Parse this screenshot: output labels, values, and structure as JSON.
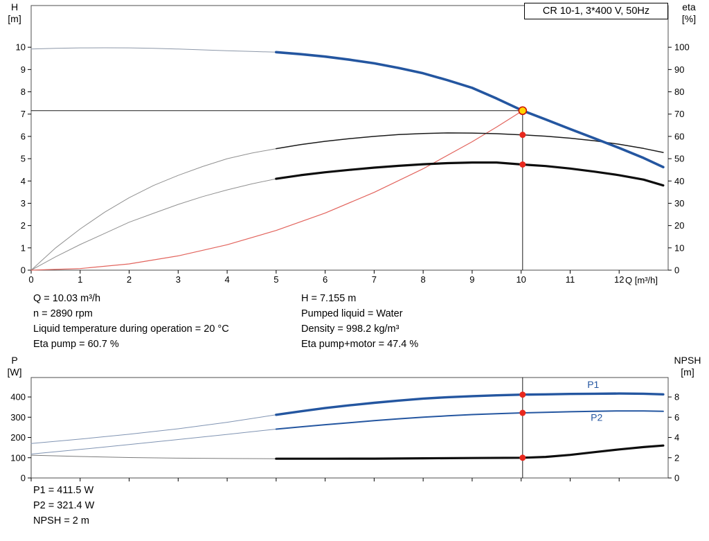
{
  "title_box": "CR 10-1, 3*400 V, 50Hz",
  "axis_labels": {
    "h": "H",
    "h_unit": "[m]",
    "eta": "eta",
    "eta_unit": "[%]",
    "q": "Q [m³/h]",
    "p": "P",
    "p_unit": "[W]",
    "npsh": "NPSH",
    "npsh_unit": "[m]"
  },
  "info_top": {
    "left": [
      "Q = 10.03 m³/h",
      "n = 2890 rpm",
      "Liquid temperature during operation = 20 °C",
      "Eta pump = 60.7 %"
    ],
    "right": [
      "H = 7.155 m",
      "Pumped liquid = Water",
      "Density = 998.2 kg/m³",
      "Eta pump+motor = 47.4 %"
    ]
  },
  "info_bottom": [
    "P1 = 411.5 W",
    "P2 = 321.4 W",
    "NPSH = 2 m"
  ],
  "colors": {
    "curve_blue": "#2456a0",
    "curve_black": "#0d0d0d",
    "system_red": "#e2635c",
    "marker_red": "#e8281e",
    "duty_yellow": "#ffd400",
    "ext_gray": "#909090",
    "ext_bluegray": "#7f93b2"
  },
  "chart_data": [
    {
      "id": "chart-hq",
      "type": "line",
      "title": "CR 10-1, 3*400 V, 50Hz",
      "x": {
        "label": "Q [m³/h]",
        "min": 0,
        "max": 13,
        "ticks": [
          0,
          1,
          2,
          3,
          4,
          5,
          6,
          7,
          8,
          9,
          10,
          11,
          12
        ]
      },
      "y_left": {
        "label": "H [m]",
        "min": 0,
        "max": 11.87,
        "ticks": [
          0,
          1,
          2,
          3,
          4,
          5,
          6,
          7,
          8,
          9,
          10
        ]
      },
      "y_right": {
        "label": "eta [%]",
        "min": 0,
        "max": 118.7,
        "ticks": [
          0,
          10,
          20,
          30,
          40,
          50,
          60,
          70,
          80,
          90,
          100
        ]
      },
      "duty_point": {
        "q": 10.03,
        "h": 7.155,
        "eta_pump": 60.7,
        "eta_pump_motor": 47.4
      },
      "series": [
        {
          "name": "duty-head-line",
          "axis": "left",
          "color": "#1a1a1a",
          "width": 1,
          "points": [
            [
              0,
              7.155
            ],
            [
              10.03,
              7.155
            ]
          ]
        },
        {
          "name": "duty-flow-line",
          "axis": "left",
          "color": "#1a1a1a",
          "width": 1,
          "points": [
            [
              10.03,
              7.155
            ],
            [
              10.03,
              0
            ]
          ]
        },
        {
          "name": "pump-curve-ext",
          "axis": "left",
          "color": "#8c97a8",
          "width": 1,
          "points": [
            [
              0,
              9.92
            ],
            [
              0.5,
              9.95
            ],
            [
              1,
              9.97
            ],
            [
              1.5,
              9.975
            ],
            [
              2,
              9.97
            ],
            [
              2.5,
              9.95
            ],
            [
              3,
              9.92
            ],
            [
              3.5,
              9.88
            ],
            [
              4,
              9.84
            ],
            [
              4.5,
              9.81
            ],
            [
              5,
              9.78
            ]
          ]
        },
        {
          "name": "eta-pump-curve-ext",
          "axis": "right",
          "color": "#909090",
          "width": 1,
          "points": [
            [
              0,
              0
            ],
            [
              0.5,
              10
            ],
            [
              1,
              18.5
            ],
            [
              1.5,
              26
            ],
            [
              2,
              32.5
            ],
            [
              2.5,
              38
            ],
            [
              3,
              42.5
            ],
            [
              3.5,
              46.5
            ],
            [
              4,
              50
            ],
            [
              4.5,
              52.5
            ],
            [
              5,
              54.5
            ]
          ]
        },
        {
          "name": "eta-pump-motor-curve-ext",
          "axis": "right",
          "color": "#909090",
          "width": 1,
          "points": [
            [
              0,
              0
            ],
            [
              0.5,
              6
            ],
            [
              1,
              11.5
            ],
            [
              1.5,
              16.5
            ],
            [
              2,
              21.5
            ],
            [
              2.5,
              25.5
            ],
            [
              3,
              29.5
            ],
            [
              3.5,
              33
            ],
            [
              4,
              36
            ],
            [
              4.5,
              38.7
            ],
            [
              5,
              41
            ]
          ]
        },
        {
          "name": "system-curve",
          "axis": "left",
          "color": "#e2635c",
          "width": 1.2,
          "points": [
            [
              0,
              0
            ],
            [
              1,
              0.07
            ],
            [
              2,
              0.28
            ],
            [
              3,
              0.64
            ],
            [
              4,
              1.14
            ],
            [
              5,
              1.78
            ],
            [
              6,
              2.56
            ],
            [
              7,
              3.49
            ],
            [
              8,
              4.55
            ],
            [
              9,
              5.76
            ],
            [
              9.5,
              6.42
            ],
            [
              10.03,
              7.155
            ]
          ]
        },
        {
          "name": "eta-pump-curve",
          "axis": "right",
          "color": "#1a1a1a",
          "width": 1.5,
          "points": [
            [
              5,
              54.5
            ],
            [
              5.5,
              56.3
            ],
            [
              6,
              57.8
            ],
            [
              6.5,
              59.0
            ],
            [
              7,
              60.0
            ],
            [
              7.5,
              60.8
            ],
            [
              8,
              61.3
            ],
            [
              8.5,
              61.55
            ],
            [
              9,
              61.5
            ],
            [
              9.5,
              61.2
            ],
            [
              10.03,
              60.7
            ],
            [
              10.5,
              60.1
            ],
            [
              11,
              59.2
            ],
            [
              11.5,
              58.0
            ],
            [
              12,
              56.5
            ],
            [
              12.5,
              54.6
            ],
            [
              12.9,
              52.8
            ]
          ]
        },
        {
          "name": "eta-pump-motor-curve",
          "axis": "right",
          "color": "#0d0d0d",
          "width": 3.2,
          "points": [
            [
              5,
              41
            ],
            [
              5.5,
              42.6
            ],
            [
              6,
              43.9
            ],
            [
              6.5,
              45.0
            ],
            [
              7,
              46.0
            ],
            [
              7.5,
              46.8
            ],
            [
              8,
              47.5
            ],
            [
              8.5,
              48.0
            ],
            [
              9,
              48.3
            ],
            [
              9.5,
              48.3
            ],
            [
              10.03,
              47.4
            ],
            [
              10.5,
              46.7
            ],
            [
              11,
              45.6
            ],
            [
              11.5,
              44.2
            ],
            [
              12,
              42.6
            ],
            [
              12.5,
              40.6
            ],
            [
              12.9,
              38.0
            ]
          ]
        },
        {
          "name": "pump-curve",
          "axis": "left",
          "color": "#2456a0",
          "width": 3.6,
          "points": [
            [
              5,
              9.78
            ],
            [
              5.5,
              9.69
            ],
            [
              6,
              9.58
            ],
            [
              6.5,
              9.44
            ],
            [
              7,
              9.28
            ],
            [
              7.5,
              9.07
            ],
            [
              8,
              8.83
            ],
            [
              8.5,
              8.52
            ],
            [
              9,
              8.18
            ],
            [
              9.5,
              7.7
            ],
            [
              10.03,
              7.155
            ],
            [
              10.5,
              6.76
            ],
            [
              11,
              6.33
            ],
            [
              11.5,
              5.91
            ],
            [
              12,
              5.48
            ],
            [
              12.5,
              5.03
            ],
            [
              12.9,
              4.62
            ]
          ]
        }
      ],
      "markers": [
        {
          "name": "eta-pump-point",
          "axis": "right",
          "x": 10.03,
          "y": 60.7,
          "r": 4.5,
          "fill": "#e8281e"
        },
        {
          "name": "eta-pump-motor-point",
          "axis": "right",
          "x": 10.03,
          "y": 47.4,
          "r": 4.5,
          "fill": "#e8281e"
        },
        {
          "name": "duty-point",
          "axis": "left",
          "x": 10.03,
          "y": 7.155,
          "r": 5.5,
          "fill": "#ffd400",
          "stroke": "#cc1100"
        }
      ],
      "annotations": []
    },
    {
      "id": "chart-p-npsh",
      "type": "line",
      "x": {
        "label": "",
        "min": 0,
        "max": 13,
        "ticks": [
          0,
          1,
          2,
          3,
          4,
          5,
          6,
          7,
          8,
          9,
          10,
          11,
          12
        ]
      },
      "y_left": {
        "label": "P [W]",
        "min": 0,
        "max": 496,
        "ticks": [
          0,
          100,
          200,
          300,
          400
        ]
      },
      "y_right": {
        "label": "NPSH [m]",
        "min": 0,
        "max": 9.92,
        "ticks": [
          0,
          2,
          4,
          6,
          8
        ]
      },
      "duty_point": {
        "q": 10.03,
        "p1": 411.5,
        "p2": 321.4,
        "npsh": 2.0
      },
      "series": [
        {
          "name": "duty-flow-line",
          "axis": "left",
          "color": "#1a1a1a",
          "width": 1,
          "points": [
            [
              10.03,
              496
            ],
            [
              10.03,
              0
            ]
          ]
        },
        {
          "name": "p1-curve-ext",
          "axis": "left",
          "color": "#7f93b2",
          "width": 1,
          "points": [
            [
              0,
              170
            ],
            [
              1,
              192
            ],
            [
              2,
              216
            ],
            [
              3,
              243
            ],
            [
              4,
              275
            ],
            [
              5,
              312
            ]
          ]
        },
        {
          "name": "p2-curve-ext",
          "axis": "left",
          "color": "#7f93b2",
          "width": 1,
          "points": [
            [
              0,
              118
            ],
            [
              1,
              141
            ],
            [
              2,
              165
            ],
            [
              3,
              190
            ],
            [
              4,
              215
            ],
            [
              5,
              241
            ]
          ]
        },
        {
          "name": "npsh-curve-ext",
          "axis": "right",
          "color": "#7a7a7a",
          "width": 1,
          "points": [
            [
              0,
              2.25
            ],
            [
              1,
              2.12
            ],
            [
              2,
              2.02
            ],
            [
              3,
              1.96
            ],
            [
              4,
              1.92
            ],
            [
              5,
              1.9
            ]
          ]
        },
        {
          "name": "npsh-curve",
          "axis": "right",
          "color": "#0d0d0d",
          "width": 3.2,
          "points": [
            [
              5,
              1.9
            ],
            [
              6,
              1.9
            ],
            [
              7,
              1.91
            ],
            [
              8,
              1.94
            ],
            [
              9,
              1.97
            ],
            [
              10.03,
              2.0
            ],
            [
              10.5,
              2.08
            ],
            [
              11,
              2.28
            ],
            [
              11.5,
              2.55
            ],
            [
              12,
              2.82
            ],
            [
              12.5,
              3.05
            ],
            [
              12.9,
              3.2
            ]
          ]
        },
        {
          "name": "p2-curve",
          "axis": "left",
          "color": "#2456a0",
          "width": 2,
          "points": [
            [
              5,
              241
            ],
            [
              5.5,
              252
            ],
            [
              6,
              263
            ],
            [
              6.5,
              273
            ],
            [
              7,
              283
            ],
            [
              7.5,
              292
            ],
            [
              8,
              300
            ],
            [
              8.5,
              307
            ],
            [
              9,
              313
            ],
            [
              9.5,
              317
            ],
            [
              10.03,
              321.4
            ],
            [
              10.5,
              324
            ],
            [
              11,
              327
            ],
            [
              11.5,
              329
            ],
            [
              12,
              331
            ],
            [
              12.5,
              331
            ],
            [
              12.9,
              329
            ]
          ]
        },
        {
          "name": "p1-curve",
          "axis": "left",
          "color": "#2456a0",
          "width": 3.4,
          "points": [
            [
              5,
              312
            ],
            [
              5.5,
              329
            ],
            [
              6,
              345
            ],
            [
              6.5,
              359
            ],
            [
              7,
              371
            ],
            [
              7.5,
              382
            ],
            [
              8,
              392
            ],
            [
              8.5,
              399
            ],
            [
              9,
              404
            ],
            [
              9.5,
              408
            ],
            [
              10.03,
              411.5
            ],
            [
              10.5,
              413
            ],
            [
              11,
              415
            ],
            [
              11.5,
              416
            ],
            [
              12,
              417
            ],
            [
              12.5,
              416
            ],
            [
              12.9,
              413
            ]
          ]
        }
      ],
      "markers": [
        {
          "name": "p1-point",
          "axis": "left",
          "x": 10.03,
          "y": 411.5,
          "r": 4.5,
          "fill": "#e8281e"
        },
        {
          "name": "p2-point",
          "axis": "left",
          "x": 10.03,
          "y": 321.4,
          "r": 4.5,
          "fill": "#e8281e"
        },
        {
          "name": "npsh-point",
          "axis": "right",
          "x": 10.03,
          "y": 2.0,
          "r": 4.5,
          "fill": "#e8281e"
        }
      ],
      "annotations": [
        {
          "text": "P1",
          "x": 11.35,
          "y": 444,
          "axis": "left",
          "color": "#2456a0"
        },
        {
          "text": "P2",
          "x": 11.42,
          "y": 282,
          "axis": "left",
          "color": "#2456a0"
        }
      ]
    }
  ]
}
